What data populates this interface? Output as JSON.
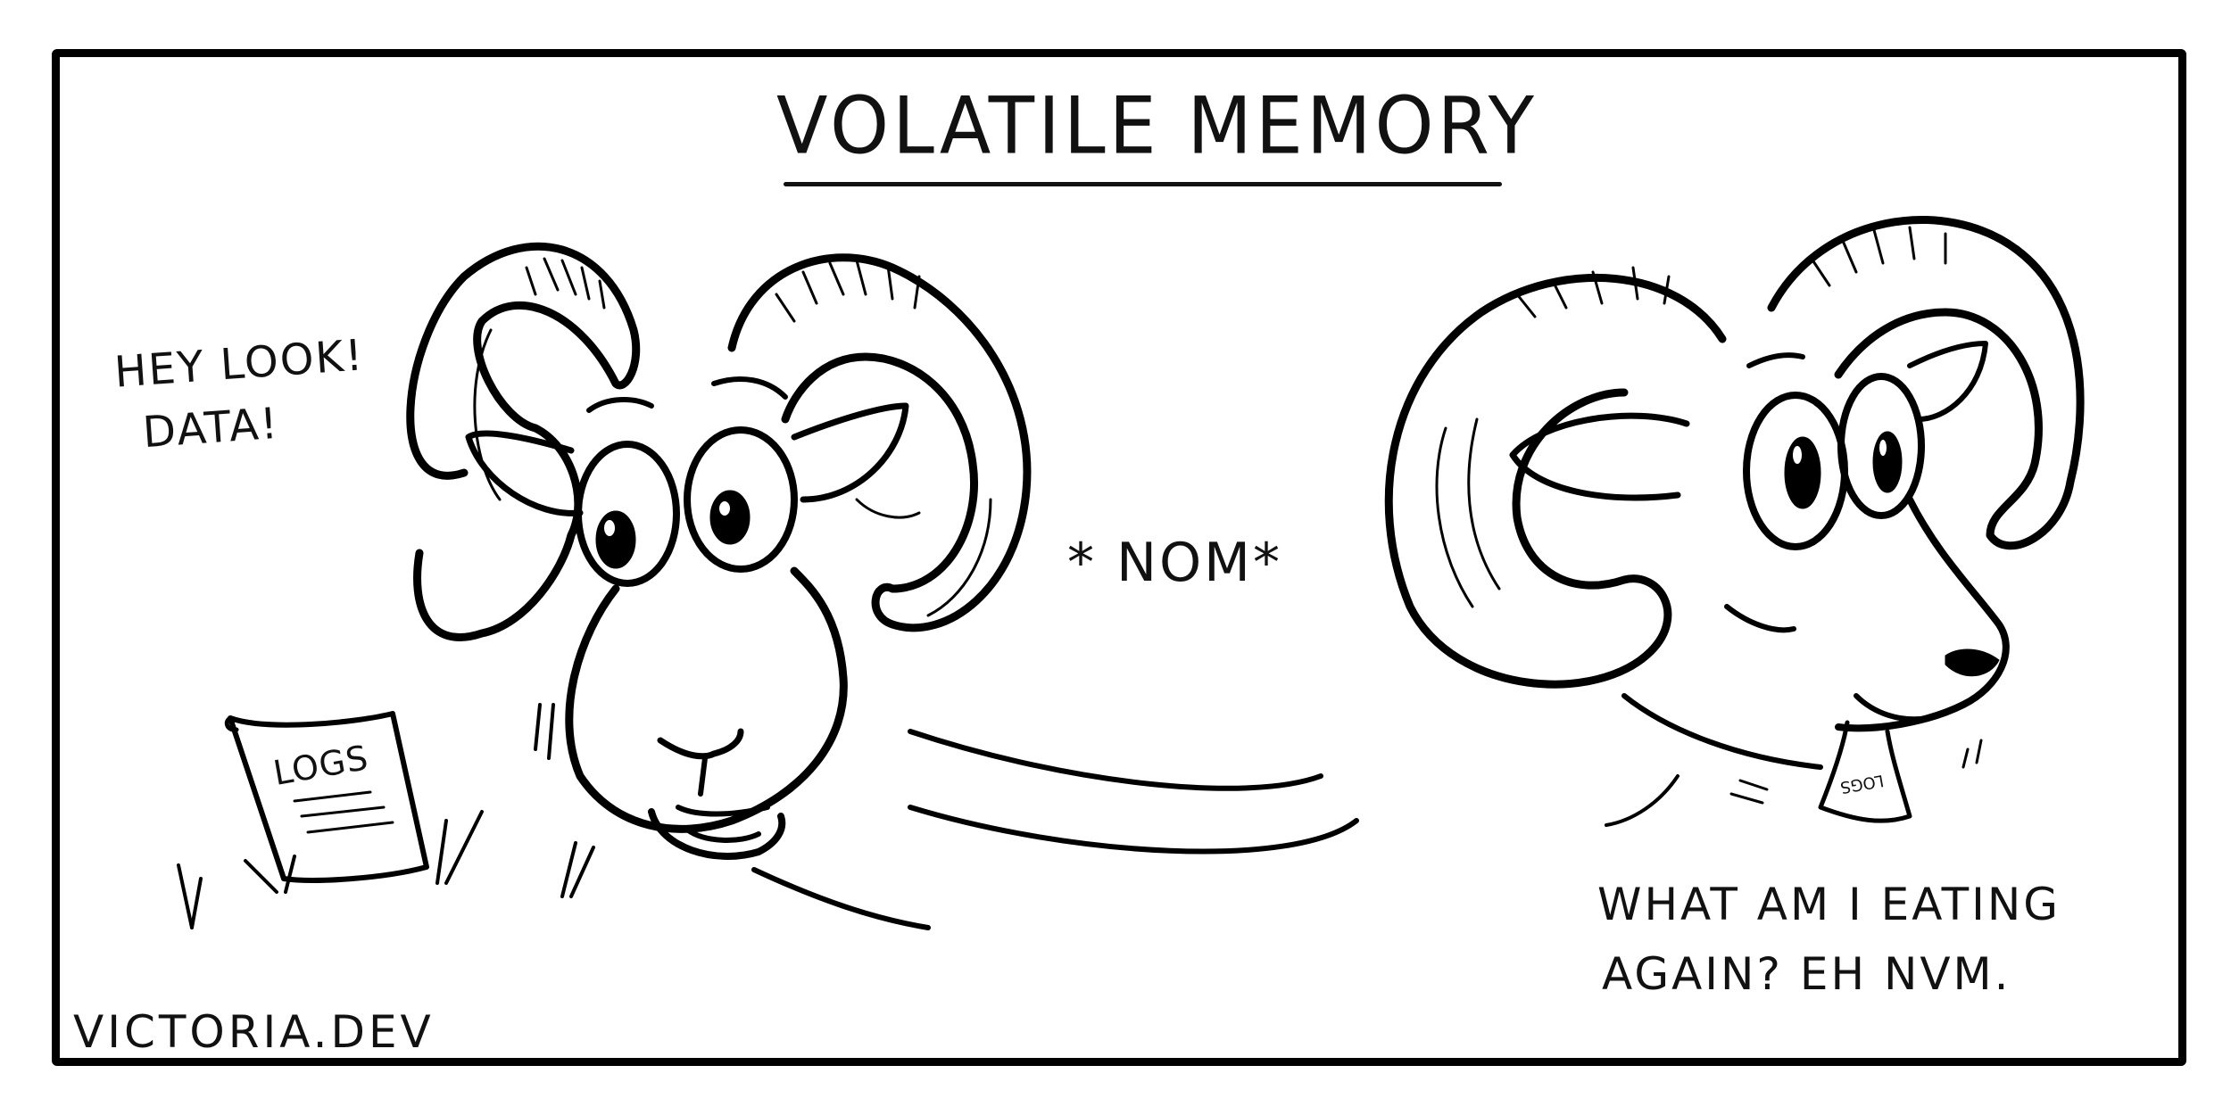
{
  "comic": {
    "title": "VOLATILE MEMORY",
    "speech_left_line1": "HEY LOOK!",
    "speech_left_line2": "DATA!",
    "sound_effect": "* NOM*",
    "speech_right_line1": "WHAT AM I EATING",
    "speech_right_line2": "AGAIN? EH NVM.",
    "paper_label": "LOGS",
    "paper_label_small": "LOGS",
    "signature": "VICTORIA.DEV"
  },
  "colors": {
    "ink": "#000000",
    "background": "#ffffff"
  }
}
